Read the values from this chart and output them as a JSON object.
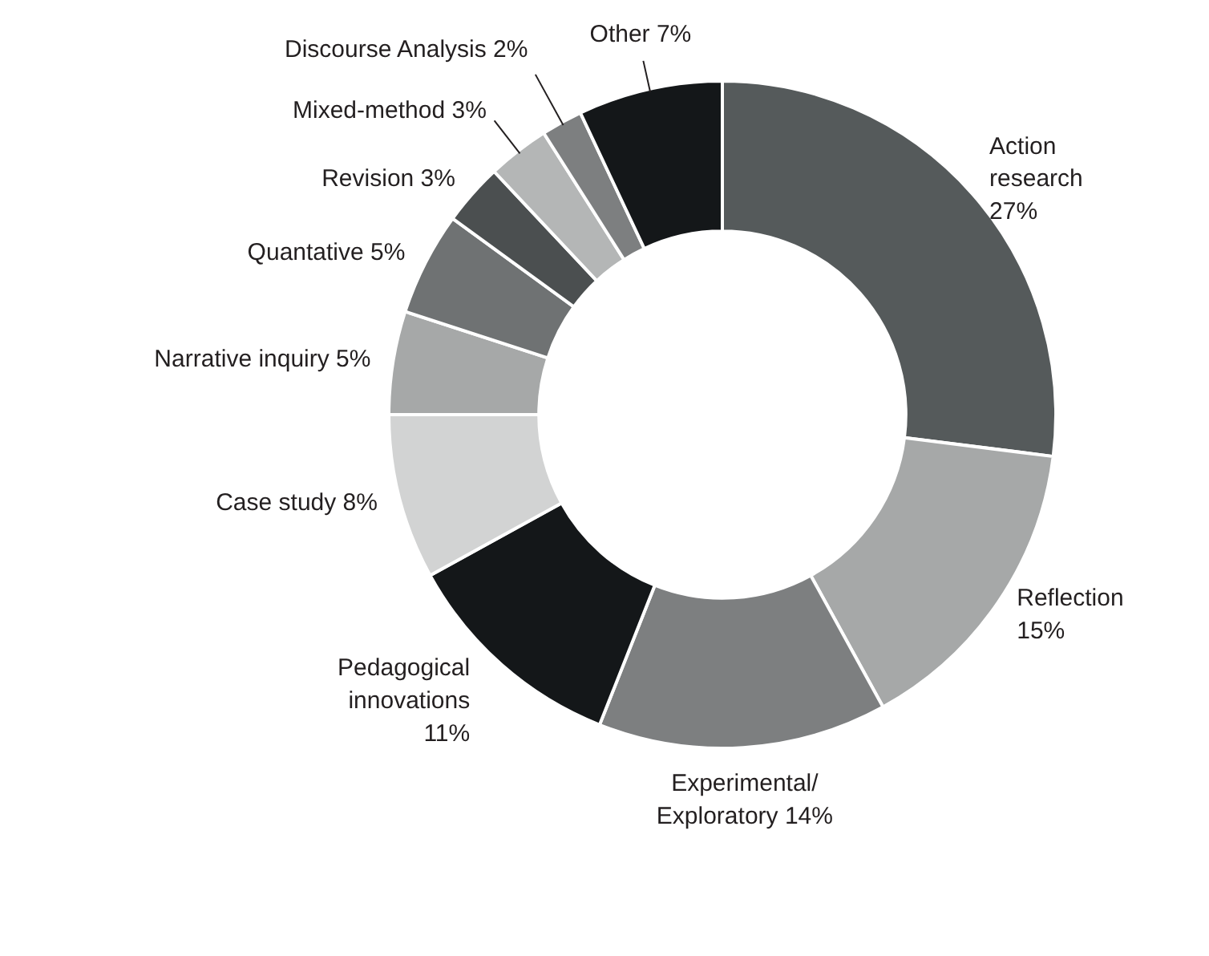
{
  "chart_data": {
    "type": "donut",
    "categories": [
      "Action\nresearch",
      "Reflection",
      "Experimental/\nExploratory",
      "Pedagogical\ninnovations",
      "Case study",
      "Narrative inquiry",
      "Quantative",
      "Revision",
      "Mixed-method",
      "Discourse Analysis",
      "Other"
    ],
    "values": [
      27,
      15,
      14,
      11,
      8,
      5,
      5,
      3,
      3,
      2,
      7
    ],
    "value_labels": [
      "27%",
      "15%",
      "14%",
      "11%",
      "8%",
      "5%",
      "5%",
      "3%",
      "3%",
      "2%",
      "7%"
    ],
    "colors": [
      "#555a5b",
      "#a6a8a8",
      "#7d7f80",
      "#141719",
      "#d2d3d3",
      "#a6a8a8",
      "#6f7273",
      "#4b4f50",
      "#b4b6b6",
      "#7d7f80",
      "#141719"
    ]
  }
}
